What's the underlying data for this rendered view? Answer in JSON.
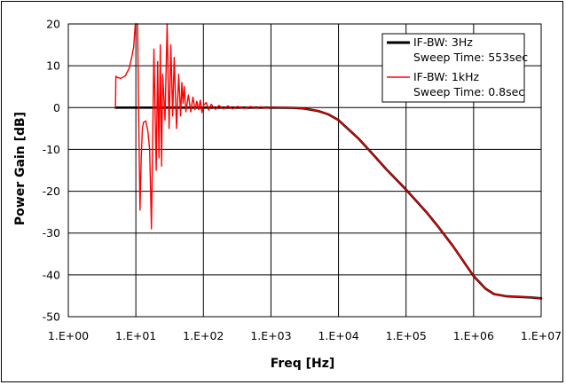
{
  "chart_data": {
    "type": "line",
    "title": "",
    "xlabel": "Freq [Hz]",
    "ylabel": "Power Gain [dB]",
    "xscale": "log",
    "xlim": [
      1,
      10000000
    ],
    "ylim": [
      -50,
      20
    ],
    "grid": true,
    "legend_position": "top-right",
    "x_tick_labels": [
      "1.E+00",
      "1.E+01",
      "1.E+02",
      "1.E+03",
      "1.E+04",
      "1.E+05",
      "1.E+06",
      "1.E+07"
    ],
    "y_ticks": [
      20,
      10,
      0,
      -10,
      -20,
      -30,
      -40,
      -50
    ],
    "series": [
      {
        "name": "IF-BW: 3Hz",
        "name_line2": "Sweep Time: 553sec",
        "color": "#000000",
        "x": [
          5,
          10,
          30,
          100,
          300,
          1000,
          2000,
          3000,
          5000,
          7000,
          10000,
          20000,
          30000,
          50000,
          100000,
          200000,
          300000,
          500000,
          1000000,
          1500000,
          2000000,
          3000000,
          5000000,
          7000000,
          10000000
        ],
        "y": [
          0,
          0,
          0,
          0,
          0,
          0,
          -0.05,
          -0.2,
          -0.8,
          -1.6,
          -3,
          -7.5,
          -10.6,
          -14.6,
          -19.6,
          -25,
          -28.5,
          -33.2,
          -40.3,
          -43.3,
          -44.6,
          -45.1,
          -45.3,
          -45.4,
          -45.6
        ]
      },
      {
        "name": "IF-BW: 1kHz",
        "name_line2": "Sweep Time: 0.8sec",
        "color": "#ff0000",
        "x": [
          5,
          5.05,
          5.3,
          6,
          7,
          8,
          8.8,
          9.3,
          9.8,
          10.2,
          10.6,
          11,
          11.5,
          12,
          12.5,
          13,
          14,
          15,
          16,
          17,
          18.5,
          20,
          21,
          22,
          23,
          24,
          25,
          27,
          29,
          31,
          33,
          35,
          37,
          40,
          43,
          46,
          48,
          50,
          52,
          55,
          60,
          65,
          70,
          75,
          80,
          85,
          90,
          95,
          100,
          110,
          120,
          130,
          150,
          170,
          200,
          230,
          270,
          320,
          400,
          500,
          600,
          700,
          850,
          1000,
          1300,
          1700,
          2000,
          3000,
          5000,
          7000,
          10000,
          20000,
          30000,
          50000,
          100000,
          200000,
          300000,
          500000,
          1000000,
          1500000,
          2000000,
          3000000,
          5000000,
          7000000,
          10000000
        ],
        "y": [
          0,
          7.5,
          7.2,
          7.0,
          7.6,
          9.5,
          12.5,
          14.5,
          20,
          20,
          20,
          -2,
          -24.5,
          -12,
          -5,
          -3.5,
          -3.2,
          -5.5,
          -10,
          -29,
          14,
          -15,
          11,
          -12,
          15,
          -14,
          8,
          -3,
          20,
          -5,
          15,
          -2,
          12,
          -5,
          8,
          -2,
          6,
          1,
          5,
          -1,
          3,
          -1,
          2.5,
          -0.5,
          1.5,
          -0.5,
          1.8,
          -1.2,
          0.5,
          1.2,
          -0.6,
          0.8,
          -0.4,
          0.5,
          -0.3,
          0.4,
          -0.3,
          0.3,
          -0.2,
          0.25,
          -0.15,
          0.2,
          -0.1,
          0.1,
          0,
          0.05,
          0,
          -0.2,
          -0.8,
          -1.6,
          -3,
          -7.5,
          -10.6,
          -14.6,
          -19.6,
          -25,
          -28.5,
          -33.2,
          -40.3,
          -43.3,
          -44.6,
          -45.1,
          -45.3,
          -45.4,
          -45.6
        ]
      }
    ]
  }
}
